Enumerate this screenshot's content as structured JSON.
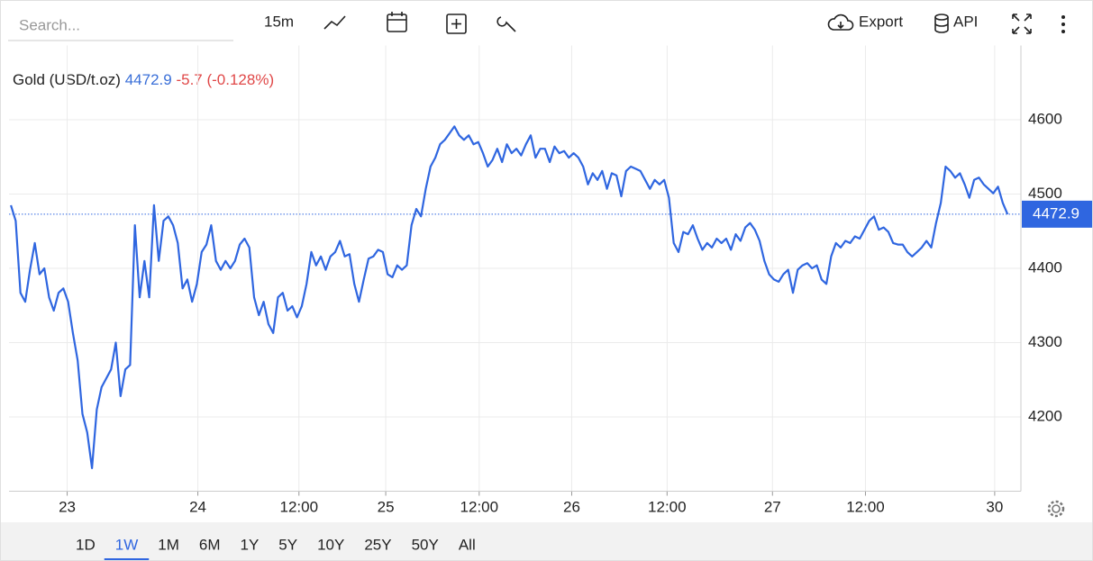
{
  "ui": {
    "search_placeholder": "Search...",
    "interval": "15m",
    "export": "Export",
    "api": "API",
    "ranges": [
      "1D",
      "1W",
      "1M",
      "6M",
      "1Y",
      "5Y",
      "10Y",
      "25Y",
      "50Y",
      "All"
    ],
    "active_range": 1
  },
  "chart_data": {
    "type": "line",
    "title": "Gold (USD/t.oz)",
    "change": "-5.7 (-0.128%)",
    "color": "#2f66e0",
    "change_color": "#e04848",
    "price_color": "#3a6fd8",
    "values": [
      4485,
      4464,
      4367,
      4355,
      4398,
      4434,
      4392,
      4400,
      4361,
      4343,
      4367,
      4373,
      4355,
      4313,
      4276,
      4204,
      4179,
      4131,
      4210,
      4240,
      4252,
      4264,
      4300,
      4228,
      4264,
      4270,
      4458,
      4361,
      4410,
      4361,
      4485,
      4410,
      4464,
      4470,
      4458,
      4434,
      4373,
      4385,
      4355,
      4379,
      4422,
      4432,
      4458,
      4410,
      4398,
      4410,
      4400,
      4410,
      4432,
      4440,
      4428,
      4361,
      4337,
      4355,
      4325,
      4313,
      4361,
      4367,
      4343,
      4349,
      4334,
      4349,
      4379,
      4422,
      4404,
      4416,
      4398,
      4416,
      4422,
      4437,
      4416,
      4419,
      4379,
      4355,
      4385,
      4413,
      4416,
      4425,
      4422,
      4392,
      4388,
      4404,
      4398,
      4404,
      4458,
      4480,
      4470,
      4507,
      4537,
      4549,
      4567,
      4573,
      4582,
      4591,
      4579,
      4573,
      4579,
      4567,
      4570,
      4555,
      4537,
      4546,
      4561,
      4543,
      4567,
      4555,
      4561,
      4552,
      4567,
      4579,
      4549,
      4561,
      4561,
      4543,
      4564,
      4555,
      4558,
      4549,
      4555,
      4549,
      4537,
      4513,
      4528,
      4519,
      4531,
      4507,
      4528,
      4525,
      4497,
      4531,
      4537,
      4534,
      4531,
      4519,
      4507,
      4519,
      4513,
      4519,
      4495,
      4434,
      4422,
      4449,
      4446,
      4458,
      4440,
      4425,
      4434,
      4428,
      4440,
      4434,
      4440,
      4425,
      4446,
      4437,
      4455,
      4461,
      4452,
      4437,
      4410,
      4392,
      4385,
      4382,
      4392,
      4398,
      4367,
      4398,
      4404,
      4407,
      4400,
      4404,
      4385,
      4379,
      4416,
      4434,
      4428,
      4437,
      4434,
      4443,
      4440,
      4452,
      4464,
      4470,
      4452,
      4455,
      4449,
      4434,
      4432,
      4432,
      4422,
      4416,
      4422,
      4428,
      4437,
      4428,
      4461,
      4488,
      4537,
      4531,
      4522,
      4528,
      4513,
      4495,
      4519,
      4522,
      4513,
      4507,
      4501,
      4510,
      4488,
      4472.9
    ],
    "xlim": [
      -0.4,
      211.8
    ],
    "xticks": [
      {
        "value": 11.8,
        "label": "23"
      },
      {
        "value": 39.2,
        "label": "24"
      },
      {
        "value": 60.4,
        "label": "12:00"
      },
      {
        "value": 78.6,
        "label": "25"
      },
      {
        "value": 98.2,
        "label": "12:00"
      },
      {
        "value": 117.6,
        "label": "26"
      },
      {
        "value": 137.6,
        "label": "12:00"
      },
      {
        "value": 159.7,
        "label": "27"
      },
      {
        "value": 179.2,
        "label": "12:00"
      },
      {
        "value": 206.3,
        "label": "30"
      }
    ],
    "ylim": [
      4100,
      4700
    ],
    "yticks": [
      4200,
      4300,
      4400,
      4500,
      4600
    ],
    "grid": true
  }
}
